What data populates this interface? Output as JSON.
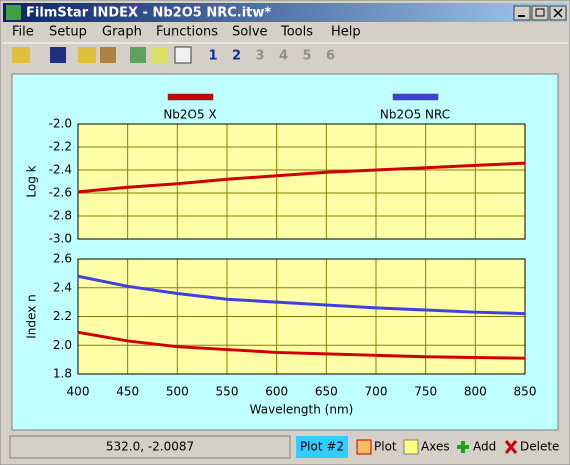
{
  "window": {
    "title": "FilmStar INDEX - Nb2O5 NRC.itw*",
    "menu": [
      "File",
      "Setup",
      "Graph",
      "Functions",
      "Solve",
      "Tools",
      "Help"
    ],
    "toolbar_numbers": [
      "1",
      "2",
      "3",
      "4",
      "5",
      "6"
    ]
  },
  "chart_data": [
    {
      "type": "line",
      "ylabel": "Log k",
      "x": [
        400,
        450,
        500,
        550,
        600,
        650,
        700,
        750,
        800,
        850
      ],
      "series": [
        {
          "color": "#d00000",
          "values": [
            -2.59,
            -2.55,
            -2.52,
            -2.48,
            -2.45,
            -2.42,
            -2.4,
            -2.38,
            -2.36,
            -2.34
          ]
        }
      ],
      "xlim": [
        400,
        850
      ],
      "xticks": [
        400,
        450,
        500,
        550,
        600,
        650,
        700,
        750,
        800,
        850
      ],
      "ylim": [
        -3,
        -2
      ],
      "yticks": [
        {
          "value": -2,
          "label": "-2.0"
        },
        -2.2,
        -2.4,
        -2.6,
        -2.8,
        {
          "value": -3,
          "label": "-3.0"
        }
      ],
      "grid": true
    },
    {
      "type": "line",
      "ylabel": "Index n",
      "xlabel": "Wavelength (nm)",
      "x": [
        400,
        450,
        500,
        550,
        600,
        650,
        700,
        750,
        800,
        850
      ],
      "series": [
        {
          "name": "Nb2O5 X",
          "color": "#d00000",
          "values": [
            2.09,
            2.03,
            1.99,
            1.97,
            1.95,
            1.94,
            1.93,
            1.92,
            1.915,
            1.91
          ]
        },
        {
          "name": "Nb2O5 NRC",
          "color": "#4040e0",
          "values": [
            2.48,
            2.41,
            2.36,
            2.32,
            2.3,
            2.28,
            2.26,
            2.245,
            2.23,
            2.22
          ]
        }
      ],
      "xlim": [
        400,
        850
      ],
      "xticks": [
        400,
        450,
        500,
        550,
        600,
        650,
        700,
        750,
        800,
        850
      ],
      "ylim": [
        1.8,
        2.6
      ],
      "yticks": [
        2.6,
        2.4,
        2.2,
        {
          "value": 2,
          "label": "2.0"
        },
        1.8
      ],
      "grid": true
    }
  ],
  "status": {
    "coords": "532.0, -2.0087",
    "plot": "Plot #2",
    "buttons": [
      "Plot",
      "Axes",
      "Add",
      "Delete"
    ]
  }
}
